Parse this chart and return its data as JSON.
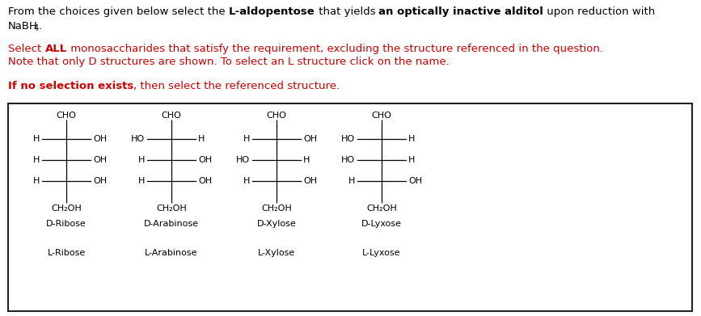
{
  "title_line1_parts": [
    {
      "text": "From the choices given below select the ",
      "bold": false,
      "color": "#000000"
    },
    {
      "text": "L-aldopentose",
      "bold": true,
      "color": "#000000"
    },
    {
      "text": " that yields ",
      "bold": false,
      "color": "#000000"
    },
    {
      "text": "an optically inactive alditol",
      "bold": true,
      "color": "#000000"
    },
    {
      "text": " upon reduction with",
      "bold": false,
      "color": "#000000"
    }
  ],
  "instruction1_parts": [
    {
      "text": "Select ",
      "bold": false,
      "color": "#cc0000"
    },
    {
      "text": "ALL",
      "bold": true,
      "color": "#cc0000"
    },
    {
      "text": " monosaccharides that satisfy the requirement, excluding the structure referenced in the question.",
      "bold": false,
      "color": "#cc0000"
    }
  ],
  "instruction2": "Note that only D structures are shown. To select an L structure click on the name.",
  "instruction2_color": "#cc0000",
  "instruction3_parts": [
    {
      "text": "If no selection exists",
      "bold": true,
      "color": "#cc0000"
    },
    {
      "text": ", then select the referenced structure.",
      "bold": false,
      "color": "#cc0000"
    }
  ],
  "sugars": [
    {
      "name_d": "D-Ribose",
      "name_l": "L-Ribose",
      "rows": [
        {
          "left": "H",
          "right": "OH"
        },
        {
          "left": "H",
          "right": "OH"
        },
        {
          "left": "H",
          "right": "OH"
        }
      ]
    },
    {
      "name_d": "D-Arabinose",
      "name_l": "L-Arabinose",
      "rows": [
        {
          "left": "HO",
          "right": "H"
        },
        {
          "left": "H",
          "right": "OH"
        },
        {
          "left": "H",
          "right": "OH"
        }
      ]
    },
    {
      "name_d": "D-Xylose",
      "name_l": "L-Xylose",
      "rows": [
        {
          "left": "H",
          "right": "OH"
        },
        {
          "left": "HO",
          "right": "H"
        },
        {
          "left": "H",
          "right": "OH"
        }
      ]
    },
    {
      "name_d": "D-Lyxose",
      "name_l": "L-Lyxose",
      "rows": [
        {
          "left": "HO",
          "right": "H"
        },
        {
          "left": "HO",
          "right": "H"
        },
        {
          "left": "H",
          "right": "OH"
        }
      ]
    }
  ],
  "box_color": "#222222",
  "background_color": "#ffffff",
  "fontsize_text": 9.5,
  "fontsize_struct": 8.0
}
